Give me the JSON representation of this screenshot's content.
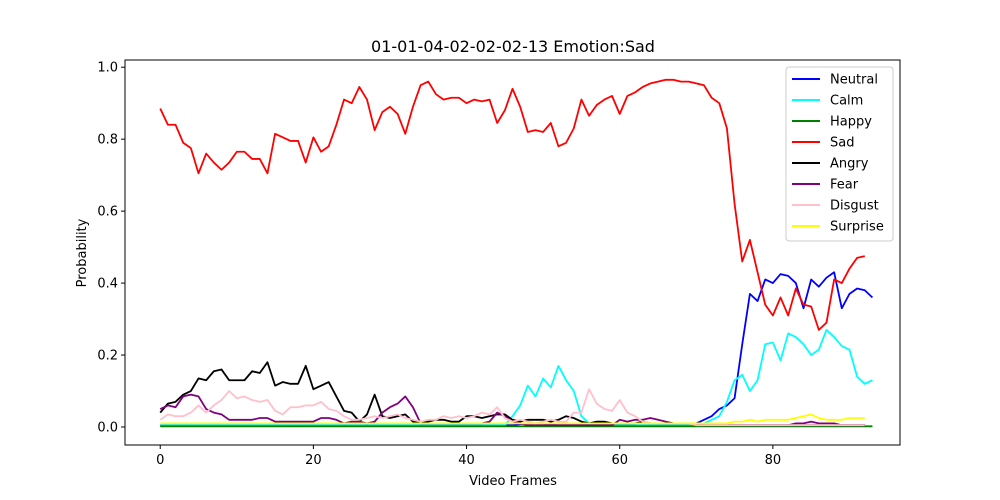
{
  "chart_data": {
    "type": "line",
    "title": "01-01-04-02-02-02-13 Emotion:Sad",
    "xlabel": "Video Frames",
    "ylabel": "Probability",
    "xlim": [
      -4.6,
      96.6
    ],
    "ylim": [
      -0.05,
      1.02
    ],
    "xticks": [
      0,
      20,
      40,
      60,
      80
    ],
    "yticks": [
      0.0,
      0.2,
      0.4,
      0.6,
      0.8,
      1.0
    ],
    "xtick_labels": [
      "0",
      "20",
      "40",
      "60",
      "80"
    ],
    "ytick_labels": [
      "0.0",
      "0.2",
      "0.4",
      "0.6",
      "0.8",
      "1.0"
    ],
    "grid": false,
    "legend_position": "top-right",
    "series": [
      {
        "name": "Neutral",
        "color": "#0000ff",
        "values": [
          0.005,
          0.005,
          0.005,
          0.005,
          0.005,
          0.005,
          0.005,
          0.005,
          0.005,
          0.005,
          0.005,
          0.005,
          0.005,
          0.005,
          0.005,
          0.005,
          0.005,
          0.005,
          0.005,
          0.005,
          0.005,
          0.005,
          0.005,
          0.005,
          0.005,
          0.005,
          0.005,
          0.005,
          0.005,
          0.005,
          0.005,
          0.005,
          0.005,
          0.005,
          0.005,
          0.005,
          0.005,
          0.005,
          0.005,
          0.005,
          0.005,
          0.005,
          0.005,
          0.005,
          0.005,
          0.005,
          0.005,
          0.008,
          0.01,
          0.01,
          0.01,
          0.008,
          0.005,
          0.005,
          0.005,
          0.005,
          0.005,
          0.005,
          0.005,
          0.005,
          0.005,
          0.005,
          0.005,
          0.005,
          0.005,
          0.005,
          0.005,
          0.005,
          0.005,
          0.005,
          0.01,
          0.02,
          0.03,
          0.05,
          0.06,
          0.08,
          0.23,
          0.37,
          0.35,
          0.41,
          0.4,
          0.425,
          0.42,
          0.4,
          0.33,
          0.41,
          0.39,
          0.415,
          0.43,
          0.33,
          0.37,
          0.385,
          0.38,
          0.36
        ]
      },
      {
        "name": "Calm",
        "color": "#00ffff",
        "values": [
          0.005,
          0.005,
          0.005,
          0.005,
          0.005,
          0.005,
          0.005,
          0.005,
          0.005,
          0.005,
          0.005,
          0.005,
          0.005,
          0.005,
          0.005,
          0.005,
          0.005,
          0.005,
          0.005,
          0.005,
          0.005,
          0.005,
          0.005,
          0.005,
          0.005,
          0.005,
          0.005,
          0.005,
          0.005,
          0.005,
          0.005,
          0.005,
          0.005,
          0.005,
          0.005,
          0.005,
          0.005,
          0.005,
          0.005,
          0.005,
          0.005,
          0.005,
          0.005,
          0.005,
          0.005,
          0.005,
          0.03,
          0.06,
          0.115,
          0.085,
          0.135,
          0.11,
          0.17,
          0.13,
          0.1,
          0.03,
          0.01,
          0.005,
          0.005,
          0.005,
          0.005,
          0.005,
          0.005,
          0.005,
          0.005,
          0.005,
          0.005,
          0.005,
          0.005,
          0.005,
          0.005,
          0.01,
          0.02,
          0.03,
          0.07,
          0.13,
          0.145,
          0.1,
          0.13,
          0.23,
          0.235,
          0.185,
          0.26,
          0.25,
          0.23,
          0.2,
          0.215,
          0.27,
          0.25,
          0.225,
          0.215,
          0.14,
          0.12,
          0.13
        ]
      },
      {
        "name": "Happy",
        "color": "#008000",
        "values": [
          0.002,
          0.002,
          0.002,
          0.002,
          0.002,
          0.002,
          0.002,
          0.002,
          0.002,
          0.002,
          0.002,
          0.002,
          0.002,
          0.002,
          0.002,
          0.002,
          0.002,
          0.002,
          0.002,
          0.002,
          0.002,
          0.002,
          0.002,
          0.002,
          0.002,
          0.002,
          0.002,
          0.002,
          0.002,
          0.002,
          0.002,
          0.002,
          0.002,
          0.002,
          0.002,
          0.002,
          0.002,
          0.002,
          0.002,
          0.002,
          0.002,
          0.002,
          0.002,
          0.002,
          0.002,
          0.002,
          0.002,
          0.002,
          0.002,
          0.002,
          0.002,
          0.002,
          0.002,
          0.002,
          0.002,
          0.002,
          0.002,
          0.002,
          0.002,
          0.002,
          0.002,
          0.002,
          0.002,
          0.002,
          0.002,
          0.002,
          0.002,
          0.002,
          0.002,
          0.002,
          0.002,
          0.002,
          0.002,
          0.002,
          0.002,
          0.002,
          0.002,
          0.002,
          0.002,
          0.002,
          0.002,
          0.002,
          0.002,
          0.002,
          0.002,
          0.002,
          0.002,
          0.002,
          0.002,
          0.002,
          0.002,
          0.002,
          0.002,
          0.002
        ]
      },
      {
        "name": "Sad",
        "color": "#ff0000",
        "values": [
          0.885,
          0.84,
          0.84,
          0.79,
          0.775,
          0.705,
          0.76,
          0.735,
          0.715,
          0.735,
          0.765,
          0.765,
          0.745,
          0.745,
          0.705,
          0.815,
          0.805,
          0.795,
          0.795,
          0.735,
          0.805,
          0.765,
          0.78,
          0.84,
          0.91,
          0.9,
          0.945,
          0.91,
          0.825,
          0.875,
          0.89,
          0.87,
          0.815,
          0.89,
          0.95,
          0.96,
          0.925,
          0.91,
          0.915,
          0.915,
          0.9,
          0.91,
          0.905,
          0.91,
          0.845,
          0.88,
          0.94,
          0.89,
          0.82,
          0.825,
          0.82,
          0.845,
          0.78,
          0.79,
          0.83,
          0.91,
          0.865,
          0.895,
          0.91,
          0.92,
          0.87,
          0.92,
          0.93,
          0.945,
          0.955,
          0.96,
          0.965,
          0.965,
          0.96,
          0.96,
          0.955,
          0.95,
          0.915,
          0.9,
          0.83,
          0.62,
          0.46,
          0.52,
          0.43,
          0.34,
          0.31,
          0.36,
          0.31,
          0.385,
          0.34,
          0.335,
          0.27,
          0.29,
          0.41,
          0.4,
          0.44,
          0.47,
          0.475
        ]
      },
      {
        "name": "Angry",
        "color": "#000000",
        "values": [
          0.04,
          0.065,
          0.07,
          0.09,
          0.1,
          0.135,
          0.13,
          0.155,
          0.16,
          0.13,
          0.13,
          0.13,
          0.155,
          0.15,
          0.18,
          0.115,
          0.125,
          0.12,
          0.12,
          0.17,
          0.105,
          0.115,
          0.125,
          0.085,
          0.045,
          0.04,
          0.015,
          0.035,
          0.09,
          0.03,
          0.025,
          0.03,
          0.035,
          0.015,
          0.01,
          0.015,
          0.02,
          0.02,
          0.015,
          0.015,
          0.03,
          0.03,
          0.025,
          0.03,
          0.035,
          0.035,
          0.02,
          0.015,
          0.02,
          0.02,
          0.02,
          0.015,
          0.02,
          0.03,
          0.025,
          0.015,
          0.01,
          0.015,
          0.015,
          0.01,
          0.01,
          0.01,
          0.01,
          0.015,
          0.01,
          0.01,
          0.01,
          0.01,
          0.01,
          0.01,
          0.01,
          0.005,
          0.005,
          0.005,
          0.005,
          0.005,
          0.005,
          0.005,
          0.005,
          0.005,
          0.005,
          0.005,
          0.005,
          0.005,
          0.005,
          0.005,
          0.005,
          0.005,
          0.005,
          0.005,
          0.005,
          0.005,
          0.005
        ]
      },
      {
        "name": "Fear",
        "color": "#800080",
        "values": [
          0.05,
          0.06,
          0.055,
          0.085,
          0.09,
          0.085,
          0.05,
          0.04,
          0.035,
          0.02,
          0.02,
          0.02,
          0.02,
          0.025,
          0.025,
          0.015,
          0.015,
          0.015,
          0.015,
          0.015,
          0.015,
          0.025,
          0.025,
          0.02,
          0.01,
          0.015,
          0.015,
          0.01,
          0.015,
          0.04,
          0.055,
          0.065,
          0.085,
          0.055,
          0.01,
          0.01,
          0.01,
          0.01,
          0.01,
          0.01,
          0.01,
          0.01,
          0.01,
          0.015,
          0.04,
          0.03,
          0.015,
          0.01,
          0.005,
          0.005,
          0.005,
          0.005,
          0.005,
          0.005,
          0.005,
          0.005,
          0.005,
          0.005,
          0.005,
          0.005,
          0.02,
          0.015,
          0.02,
          0.02,
          0.025,
          0.02,
          0.015,
          0.01,
          0.01,
          0.01,
          0.005,
          0.005,
          0.005,
          0.005,
          0.005,
          0.005,
          0.005,
          0.005,
          0.005,
          0.005,
          0.005,
          0.005,
          0.005,
          0.01,
          0.01,
          0.015,
          0.01,
          0.01,
          0.01,
          0.005,
          0.005,
          0.005,
          0.005
        ]
      },
      {
        "name": "Disgust",
        "color": "#ffc0cb",
        "values": [
          0.02,
          0.035,
          0.03,
          0.03,
          0.04,
          0.06,
          0.04,
          0.06,
          0.075,
          0.1,
          0.08,
          0.085,
          0.075,
          0.07,
          0.075,
          0.045,
          0.035,
          0.055,
          0.055,
          0.06,
          0.06,
          0.07,
          0.05,
          0.045,
          0.03,
          0.02,
          0.02,
          0.025,
          0.03,
          0.025,
          0.03,
          0.035,
          0.025,
          0.02,
          0.015,
          0.02,
          0.02,
          0.03,
          0.025,
          0.03,
          0.025,
          0.03,
          0.04,
          0.035,
          0.055,
          0.025,
          0.015,
          0.02,
          0.015,
          0.01,
          0.015,
          0.02,
          0.015,
          0.015,
          0.04,
          0.04,
          0.105,
          0.065,
          0.05,
          0.045,
          0.075,
          0.04,
          0.03,
          0.015,
          0.01,
          0.01,
          0.01,
          0.01,
          0.01,
          0.01,
          0.005,
          0.005,
          0.005,
          0.005,
          0.005,
          0.005,
          0.005,
          0.005,
          0.005,
          0.005,
          0.005,
          0.005,
          0.005,
          0.005,
          0.005,
          0.005,
          0.005,
          0.005,
          0.005,
          0.005,
          0.005,
          0.005,
          0.005
        ]
      },
      {
        "name": "Surprise",
        "color": "#ffff00",
        "values": [
          0.01,
          0.01,
          0.01,
          0.01,
          0.01,
          0.01,
          0.01,
          0.01,
          0.01,
          0.01,
          0.01,
          0.01,
          0.01,
          0.01,
          0.01,
          0.01,
          0.01,
          0.01,
          0.01,
          0.01,
          0.01,
          0.01,
          0.01,
          0.01,
          0.01,
          0.01,
          0.01,
          0.01,
          0.01,
          0.01,
          0.01,
          0.01,
          0.01,
          0.01,
          0.01,
          0.01,
          0.01,
          0.01,
          0.01,
          0.01,
          0.01,
          0.01,
          0.01,
          0.01,
          0.01,
          0.01,
          0.01,
          0.01,
          0.01,
          0.01,
          0.01,
          0.01,
          0.01,
          0.01,
          0.01,
          0.01,
          0.01,
          0.01,
          0.01,
          0.01,
          0.01,
          0.01,
          0.01,
          0.01,
          0.01,
          0.01,
          0.01,
          0.01,
          0.01,
          0.01,
          0.01,
          0.01,
          0.01,
          0.01,
          0.01,
          0.015,
          0.015,
          0.02,
          0.015,
          0.02,
          0.02,
          0.02,
          0.02,
          0.025,
          0.03,
          0.035,
          0.025,
          0.02,
          0.02,
          0.02,
          0.025,
          0.025,
          0.025
        ]
      }
    ]
  }
}
